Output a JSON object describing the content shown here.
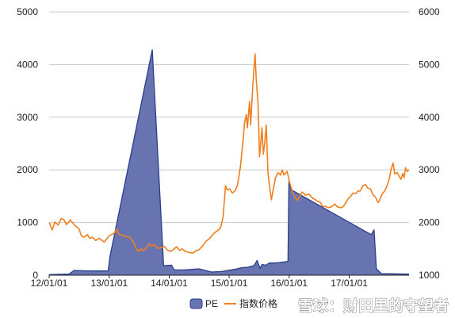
{
  "chart_data": {
    "type": "area+line",
    "x_tick_labels": [
      "12/01/01",
      "13/01/01",
      "14/01/01",
      "15/01/01",
      "16/01/01",
      "17/01/01"
    ],
    "x_range": [
      "2012-01-01",
      "2017-12-31"
    ],
    "y_left": {
      "ticks": [
        "0",
        "1000",
        "2000",
        "3000",
        "4000",
        "5000"
      ],
      "ylim": [
        0,
        5000
      ]
    },
    "y_right": {
      "ticks": [
        "1000",
        "2000",
        "3000",
        "4000",
        "5000",
        "6000"
      ],
      "ylim": [
        1000,
        6000
      ]
    },
    "grid": "horizontal",
    "legend_position": "bottom-right",
    "series": [
      {
        "name": "PE",
        "type": "area",
        "axis": "left",
        "color": "#283d8c",
        "fill": "#6774b0",
        "points": [
          [
            "2012-01-01",
            10
          ],
          [
            "2012-05-01",
            20
          ],
          [
            "2012-06-01",
            90
          ],
          [
            "2012-08-15",
            80
          ],
          [
            "2012-11-01",
            80
          ],
          [
            "2012-12-25",
            80
          ],
          [
            "2013-01-05",
            350
          ],
          [
            "2013-09-20",
            4280
          ],
          [
            "2013-11-28",
            180
          ],
          [
            "2014-01-15",
            190
          ],
          [
            "2014-02-01",
            100
          ],
          [
            "2014-04-01",
            100
          ],
          [
            "2014-07-01",
            120
          ],
          [
            "2014-09-15",
            60
          ],
          [
            "2014-11-15",
            70
          ],
          [
            "2015-02-01",
            110
          ],
          [
            "2015-03-15",
            140
          ],
          [
            "2015-04-25",
            150
          ],
          [
            "2015-06-01",
            180
          ],
          [
            "2015-06-20",
            280
          ],
          [
            "2015-07-08",
            130
          ],
          [
            "2015-07-20",
            200
          ],
          [
            "2015-08-15",
            190
          ],
          [
            "2015-09-01",
            230
          ],
          [
            "2015-10-01",
            230
          ],
          [
            "2015-11-01",
            240
          ],
          [
            "2015-12-25",
            260
          ],
          [
            "2015-12-31",
            1780
          ],
          [
            "2016-01-15",
            1620
          ],
          [
            "2017-05-15",
            770
          ],
          [
            "2017-06-01",
            860
          ],
          [
            "2017-06-15",
            120
          ],
          [
            "2017-07-15",
            30
          ],
          [
            "2017-12-31",
            20
          ]
        ]
      },
      {
        "name": "指数价格",
        "type": "line",
        "axis": "right",
        "color": "#f07f1e",
        "points": [
          [
            "2012-01-01",
            2000
          ],
          [
            "2012-01-20",
            1860
          ],
          [
            "2012-02-05",
            2010
          ],
          [
            "2012-02-25",
            1950
          ],
          [
            "2012-03-15",
            2080
          ],
          [
            "2012-04-01",
            2050
          ],
          [
            "2012-04-15",
            1960
          ],
          [
            "2012-05-10",
            2050
          ],
          [
            "2012-06-01",
            1960
          ],
          [
            "2012-07-01",
            1880
          ],
          [
            "2012-07-15",
            1750
          ],
          [
            "2012-08-01",
            1720
          ],
          [
            "2012-08-20",
            1770
          ],
          [
            "2012-09-05",
            1700
          ],
          [
            "2012-09-20",
            1720
          ],
          [
            "2012-10-10",
            1660
          ],
          [
            "2012-11-01",
            1700
          ],
          [
            "2012-12-01",
            1630
          ],
          [
            "2013-01-01",
            1750
          ],
          [
            "2013-02-01",
            1800
          ],
          [
            "2013-02-15",
            1880
          ],
          [
            "2013-03-01",
            1780
          ],
          [
            "2013-03-20",
            1760
          ],
          [
            "2013-04-10",
            1730
          ],
          [
            "2013-05-01",
            1730
          ],
          [
            "2013-05-25",
            1650
          ],
          [
            "2013-06-15",
            1500
          ],
          [
            "2013-06-28",
            1450
          ],
          [
            "2013-07-10",
            1500
          ],
          [
            "2013-07-28",
            1460
          ],
          [
            "2013-08-15",
            1520
          ],
          [
            "2013-09-01",
            1600
          ],
          [
            "2013-09-15",
            1550
          ],
          [
            "2013-10-01",
            1580
          ],
          [
            "2013-10-20",
            1510
          ],
          [
            "2013-11-10",
            1520
          ],
          [
            "2013-12-01",
            1550
          ],
          [
            "2013-12-20",
            1480
          ],
          [
            "2014-01-10",
            1450
          ],
          [
            "2014-01-25",
            1480
          ],
          [
            "2014-02-15",
            1540
          ],
          [
            "2014-03-05",
            1470
          ],
          [
            "2014-03-20",
            1500
          ],
          [
            "2014-04-10",
            1450
          ],
          [
            "2014-05-01",
            1430
          ],
          [
            "2014-05-25",
            1420
          ],
          [
            "2014-06-15",
            1470
          ],
          [
            "2014-07-01",
            1480
          ],
          [
            "2014-07-25",
            1560
          ],
          [
            "2014-08-15",
            1650
          ],
          [
            "2014-09-05",
            1700
          ],
          [
            "2014-09-25",
            1780
          ],
          [
            "2014-10-10",
            1820
          ],
          [
            "2014-10-25",
            1850
          ],
          [
            "2014-11-10",
            1900
          ],
          [
            "2014-11-25",
            2100
          ],
          [
            "2014-12-05",
            2500
          ],
          [
            "2014-12-10",
            2700
          ],
          [
            "2014-12-20",
            2620
          ],
          [
            "2015-01-05",
            2640
          ],
          [
            "2015-01-20",
            2560
          ],
          [
            "2015-02-05",
            2600
          ],
          [
            "2015-02-20",
            2700
          ],
          [
            "2015-03-10",
            3050
          ],
          [
            "2015-03-25",
            3500
          ],
          [
            "2015-04-05",
            3900
          ],
          [
            "2015-04-15",
            4050
          ],
          [
            "2015-04-22",
            3800
          ],
          [
            "2015-05-05",
            4300
          ],
          [
            "2015-05-12",
            3850
          ],
          [
            "2015-05-25",
            4600
          ],
          [
            "2015-06-08",
            5200
          ],
          [
            "2015-06-15",
            4700
          ],
          [
            "2015-06-25",
            4300
          ],
          [
            "2015-07-01",
            3700
          ],
          [
            "2015-07-05",
            3250
          ],
          [
            "2015-07-12",
            3500
          ],
          [
            "2015-07-20",
            3800
          ],
          [
            "2015-07-28",
            3300
          ],
          [
            "2015-08-05",
            3500
          ],
          [
            "2015-08-15",
            3850
          ],
          [
            "2015-08-25",
            2960
          ],
          [
            "2015-09-05",
            2650
          ],
          [
            "2015-09-15",
            2430
          ],
          [
            "2015-09-25",
            2600
          ],
          [
            "2015-10-10",
            2850
          ],
          [
            "2015-10-25",
            2950
          ],
          [
            "2015-11-10",
            2900
          ],
          [
            "2015-11-20",
            3000
          ],
          [
            "2015-12-01",
            2900
          ],
          [
            "2015-12-20",
            2970
          ],
          [
            "2016-01-05",
            2750
          ],
          [
            "2016-01-20",
            2600
          ],
          [
            "2016-02-01",
            2500
          ],
          [
            "2016-02-20",
            2420
          ],
          [
            "2016-03-05",
            2500
          ],
          [
            "2016-03-20",
            2580
          ],
          [
            "2016-04-10",
            2520
          ],
          [
            "2016-05-01",
            2540
          ],
          [
            "2016-05-20",
            2470
          ],
          [
            "2016-06-10",
            2430
          ],
          [
            "2016-06-25",
            2400
          ],
          [
            "2016-07-10",
            2380
          ],
          [
            "2016-07-25",
            2300
          ],
          [
            "2016-08-10",
            2310
          ],
          [
            "2016-08-25",
            2280
          ],
          [
            "2016-09-15",
            2300
          ],
          [
            "2016-10-05",
            2350
          ],
          [
            "2016-10-20",
            2300
          ],
          [
            "2016-11-10",
            2280
          ],
          [
            "2016-11-25",
            2300
          ],
          [
            "2016-12-10",
            2370
          ],
          [
            "2016-12-25",
            2450
          ],
          [
            "2017-01-10",
            2500
          ],
          [
            "2017-01-25",
            2560
          ],
          [
            "2017-02-10",
            2550
          ],
          [
            "2017-02-25",
            2600
          ],
          [
            "2017-03-10",
            2600
          ],
          [
            "2017-03-25",
            2700
          ],
          [
            "2017-04-10",
            2720
          ],
          [
            "2017-04-25",
            2650
          ],
          [
            "2017-05-10",
            2640
          ],
          [
            "2017-05-25",
            2530
          ],
          [
            "2017-06-10",
            2480
          ],
          [
            "2017-06-25",
            2380
          ],
          [
            "2017-07-05",
            2420
          ],
          [
            "2017-07-20",
            2540
          ],
          [
            "2017-08-05",
            2600
          ],
          [
            "2017-08-20",
            2700
          ],
          [
            "2017-09-01",
            2820
          ],
          [
            "2017-09-12",
            3000
          ],
          [
            "2017-09-25",
            3130
          ],
          [
            "2017-10-05",
            2920
          ],
          [
            "2017-10-18",
            2950
          ],
          [
            "2017-11-01",
            2880
          ],
          [
            "2017-11-12",
            2820
          ],
          [
            "2017-11-22",
            2930
          ],
          [
            "2017-12-01",
            2850
          ],
          [
            "2017-12-10",
            3040
          ],
          [
            "2017-12-20",
            2970
          ],
          [
            "2017-12-31",
            3000
          ]
        ]
      }
    ]
  },
  "watermark": "雪球：财田里的守望者",
  "colors": {
    "grid": "#c8c8c8",
    "axis": "#222222",
    "background": "#ffffff"
  }
}
